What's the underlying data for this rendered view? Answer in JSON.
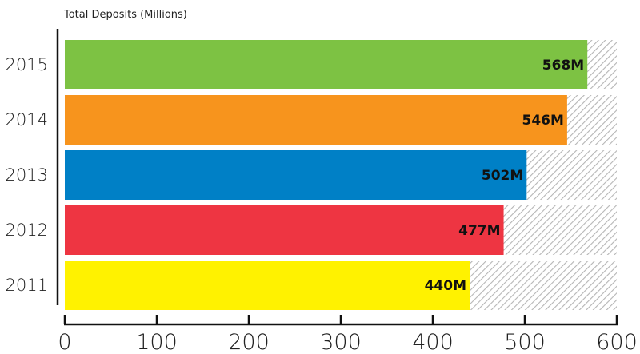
{
  "chart_data": {
    "type": "bar",
    "orientation": "horizontal",
    "title": "Total Deposits (Millions)",
    "categories": [
      "2015",
      "2014",
      "2013",
      "2012",
      "2011"
    ],
    "values": [
      568,
      546,
      502,
      477,
      440
    ],
    "value_labels": [
      "568M",
      "546M",
      "502M",
      "477M",
      "440M"
    ],
    "colors": [
      "#7dc243",
      "#f7941d",
      "#0080c6",
      "#ee3542",
      "#fff200"
    ],
    "xlim": [
      0,
      600
    ],
    "xticks": [
      0,
      100,
      200,
      300,
      400,
      500,
      600
    ],
    "xtick_labels": [
      "0",
      "100",
      "200",
      "300",
      "400",
      "500",
      "600"
    ],
    "background_pattern": "hatched",
    "grid": false
  }
}
